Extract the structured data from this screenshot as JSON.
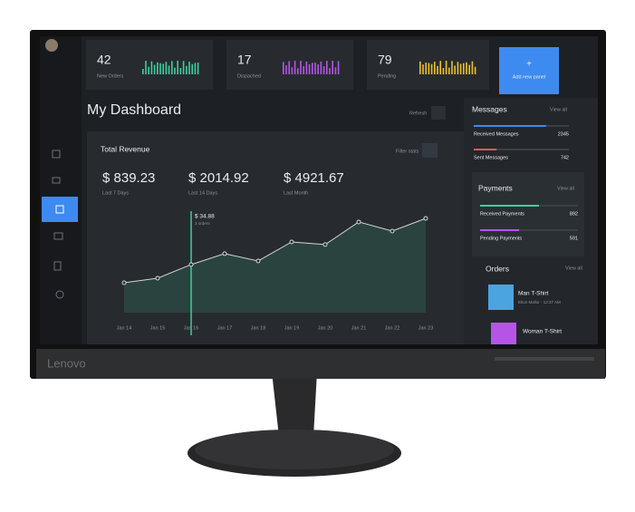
{
  "stats": [
    {
      "value": 42,
      "label": "New Orders",
      "color": "#3ecf9c"
    },
    {
      "value": 17,
      "label": "Dispached",
      "color": "#b455e8"
    },
    {
      "value": 79,
      "label": "Pending",
      "color": "#e8c22a"
    }
  ],
  "add_panel": {
    "icon": "+",
    "label": "Add new panel"
  },
  "title": "My Dashboard",
  "refresh": "Refresh",
  "chart_data": {
    "type": "line",
    "title": "Total Revenue",
    "filter": "Filter stats",
    "summary": [
      {
        "value": "$ 839.23",
        "label": "Last 7 Days"
      },
      {
        "value": "$ 2014.92",
        "label": "Last 14 Days"
      },
      {
        "value": "$ 4921.67",
        "label": "Last Month"
      }
    ],
    "categories": [
      "Jan 14",
      "Jan 15",
      "Jan 16",
      "Jan 17",
      "Jan 18",
      "Jan 19",
      "Jan 20",
      "Jan 21",
      "Jan 22",
      "Jan 23"
    ],
    "values": [
      21.7,
      25,
      34.88,
      42.8,
      37.5,
      51.3,
      49.4,
      65.8,
      59.2,
      68.4
    ],
    "color": "#3ecf9c",
    "tooltip": {
      "value": "$ 34.88",
      "detail": "3 orders"
    }
  },
  "messages": {
    "title": "Messages",
    "view_all": "View all",
    "items": [
      {
        "label": "Received Messages",
        "value": 2345,
        "color": "#3d8bf0"
      },
      {
        "label": "Sent Messages",
        "value": 742,
        "color": "#e85a5a"
      }
    ]
  },
  "payments": {
    "title": "Payments",
    "view_all": "View all",
    "items": [
      {
        "label": "Received Payments",
        "value": 892,
        "color": "#3ecf9c"
      },
      {
        "label": "Pending Payments",
        "value": 591,
        "color": "#b455e8"
      }
    ]
  },
  "orders": {
    "title": "Orders",
    "view_all": "View all",
    "items": [
      {
        "name": "Man T-Shirt",
        "detail": "Elton Mallor · 12:37 AM"
      },
      {
        "name": "Woman T-Shirt"
      }
    ]
  },
  "brand": "Lenovo"
}
